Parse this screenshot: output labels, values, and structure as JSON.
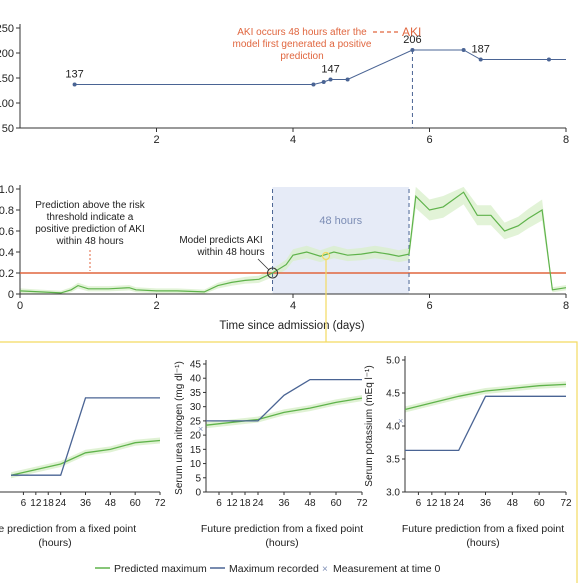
{
  "chart_data": [
    {
      "id": "creatinine",
      "type": "line",
      "xlim": [
        0,
        8
      ],
      "ylim": [
        50,
        250
      ],
      "x_ticks": [
        "2",
        "4",
        "6",
        "8"
      ],
      "y_ticks": [
        "50",
        "100",
        "150",
        "200",
        "250"
      ],
      "series": [
        {
          "x": [
            0.8,
            4.3,
            4.45,
            4.55,
            4.8,
            5.75,
            6.5,
            6.75,
            7.75,
            8.0
          ],
          "y": [
            137,
            137,
            142,
            147,
            147,
            206,
            206,
            187,
            187,
            187
          ]
        }
      ],
      "point_labels": [
        {
          "x": 0.8,
          "y": 137,
          "text": "137"
        },
        {
          "x": 4.55,
          "y": 147,
          "text": "147"
        },
        {
          "x": 5.75,
          "y": 206,
          "text": "206"
        },
        {
          "x": 6.75,
          "y": 187,
          "text": "187"
        }
      ],
      "aki_x": 5.75,
      "annotation": "AKI occurs 48 hours after the model first generated a positive prediction",
      "legend_label": "AKI"
    },
    {
      "id": "risk",
      "type": "line",
      "xlim": [
        0,
        8
      ],
      "ylim": [
        0,
        1.0
      ],
      "x_ticks": [
        "0",
        "2",
        "4",
        "6",
        "8"
      ],
      "y_ticks": [
        "0",
        "0.2",
        "0.4",
        "0.6",
        "0.8",
        "1.0"
      ],
      "xlabel": "Time since admission (days)",
      "threshold": 0.2,
      "window_label": "48 hours",
      "window": [
        3.7,
        5.7
      ],
      "first_positive_x": 3.7,
      "series": [
        {
          "x": [
            0.0,
            0.3,
            0.6,
            0.75,
            0.85,
            1.0,
            1.3,
            1.6,
            1.7,
            2.0,
            2.3,
            2.7,
            2.9,
            3.1,
            3.3,
            3.5,
            3.7,
            3.9,
            4.0,
            4.2,
            4.4,
            4.6,
            4.8,
            5.0,
            5.2,
            5.4,
            5.55,
            5.7,
            5.8,
            6.0,
            6.2,
            6.5,
            6.7,
            6.9,
            7.1,
            7.3,
            7.45,
            7.65,
            7.8,
            8.0
          ],
          "y": [
            0.03,
            0.02,
            0.01,
            0.04,
            0.08,
            0.05,
            0.05,
            0.06,
            0.04,
            0.03,
            0.03,
            0.02,
            0.08,
            0.11,
            0.13,
            0.14,
            0.2,
            0.28,
            0.37,
            0.4,
            0.36,
            0.4,
            0.37,
            0.38,
            0.4,
            0.38,
            0.36,
            0.38,
            0.93,
            0.8,
            0.83,
            0.97,
            0.75,
            0.75,
            0.6,
            0.65,
            0.72,
            0.8,
            0.04,
            0.06
          ]
        }
      ],
      "annotations": [
        "Prediction above the risk threshold indicate a positive prediction of AKI within 48 hours",
        "Model predicts AKI within 48 hours"
      ]
    },
    {
      "id": "panel_left",
      "type": "line",
      "xlim": [
        0,
        72
      ],
      "x_ticks": [
        "6",
        "12",
        "18",
        "24",
        "36",
        "48",
        "60",
        "72"
      ],
      "xlabel": "Future prediction from a fixed point (hours)",
      "predicted": [
        [
          0,
          0.15
        ],
        [
          24,
          0.25
        ],
        [
          36,
          0.35
        ],
        [
          48,
          0.38
        ],
        [
          60,
          0.44
        ],
        [
          72,
          0.46
        ]
      ],
      "recorded": [
        [
          0,
          0.15
        ],
        [
          24,
          0.15
        ],
        [
          36,
          0.84
        ],
        [
          72,
          0.84
        ]
      ]
    },
    {
      "id": "panel_urea",
      "type": "line",
      "xlim": [
        0,
        72
      ],
      "ylim": [
        0,
        45
      ],
      "x_ticks": [
        "6",
        "12",
        "18",
        "24",
        "36",
        "48",
        "60",
        "72"
      ],
      "y_ticks": [
        "0",
        "5",
        "10",
        "15",
        "20",
        "25",
        "30",
        "35",
        "40",
        "45"
      ],
      "ylabel": "Serum urea nitrogen (mg dl⁻¹)",
      "xlabel": "Future prediction from a fixed point (hours)",
      "predicted": [
        [
          0,
          23.5
        ],
        [
          24,
          25.5
        ],
        [
          36,
          28
        ],
        [
          48,
          29.5
        ],
        [
          60,
          31.5
        ],
        [
          72,
          33
        ]
      ],
      "recorded": [
        [
          0,
          25
        ],
        [
          24,
          25
        ],
        [
          36,
          34
        ],
        [
          48,
          39.5
        ],
        [
          72,
          39.5
        ]
      ]
    },
    {
      "id": "panel_potassium",
      "type": "line",
      "xlim": [
        0,
        72
      ],
      "ylim": [
        3.0,
        5.0
      ],
      "x_ticks": [
        "6",
        "12",
        "18",
        "24",
        "36",
        "48",
        "60",
        "72"
      ],
      "y_ticks": [
        "3.0",
        "3.5",
        "4.0",
        "4.5",
        "5.0"
      ],
      "ylabel": "Serum potassium (mEq l⁻¹)",
      "xlabel": "Future prediction from a fixed point (hours)",
      "predicted": [
        [
          0,
          4.25
        ],
        [
          12,
          4.35
        ],
        [
          24,
          4.45
        ],
        [
          36,
          4.53
        ],
        [
          48,
          4.57
        ],
        [
          60,
          4.61
        ],
        [
          72,
          4.63
        ]
      ],
      "recorded": [
        [
          0,
          3.63
        ],
        [
          24,
          3.63
        ],
        [
          36,
          4.45
        ],
        [
          72,
          4.45
        ]
      ]
    }
  ],
  "legend": {
    "predicted": "Predicted maximum",
    "recorded": "Maximum recorded",
    "measurement": "Measurement at time 0"
  },
  "colors": {
    "blue": "#4a6494",
    "green": "#5fb34b",
    "band": "#d8efc9",
    "orange": "#e0663f",
    "window": "#e6ebf7",
    "yellow": "#f4da62"
  }
}
